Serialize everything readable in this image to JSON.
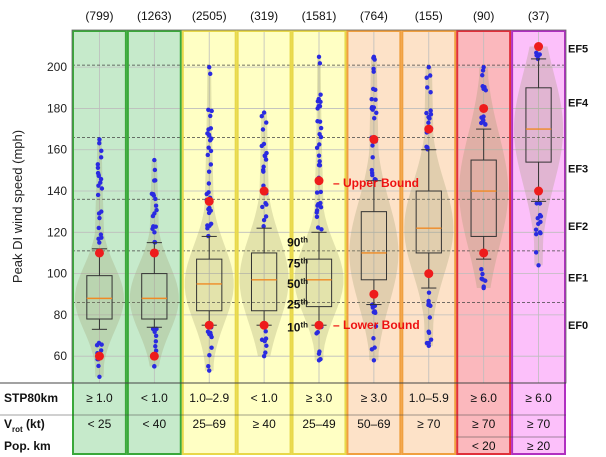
{
  "chart_data": {
    "type": "box",
    "ylabel": "Peak DI wind speed (mph)",
    "ylim": [
      47,
      218
    ],
    "yticks": [
      60,
      80,
      100,
      120,
      140,
      160,
      180,
      200
    ],
    "ef_thresholds": [
      86,
      111,
      136,
      166,
      201
    ],
    "ef_labels": [
      {
        "label": "EF0",
        "y": 75
      },
      {
        "label": "EF1",
        "y": 98
      },
      {
        "label": "EF2",
        "y": 123
      },
      {
        "label": "EF3",
        "y": 151
      },
      {
        "label": "EF4",
        "y": 183
      },
      {
        "label": "EF5",
        "y": 209
      }
    ],
    "row_labels": {
      "stp": "STP80km",
      "vrot_main": "V",
      "vrot_sub": "rot",
      "vrot_unit": " (kt)",
      "pop": "Pop. km"
    },
    "percentile_labels": [
      {
        "num": "90",
        "suffix": "th",
        "y": 115
      },
      {
        "num": "75",
        "suffix": "th",
        "y": 105
      },
      {
        "num": "50",
        "suffix": "th",
        "y": 95
      },
      {
        "num": "25",
        "suffix": "th",
        "y": 85
      },
      {
        "num": "10",
        "suffix": "th",
        "y": 74
      }
    ],
    "bound_labels": {
      "upper": "– Upper Bound",
      "lower": "– Lower Bound",
      "upper_y": 144,
      "lower_y": 75
    },
    "groups": [
      {
        "count": "(799)",
        "stp": "≥ 1.0",
        "vrot": "< 25",
        "pop": "",
        "color": "#c6eacb",
        "border": "#3aa83a",
        "min": 50,
        "p10": 73,
        "q1": 78,
        "median": 88,
        "q3": 99,
        "p90": 112,
        "max": 165,
        "lower_bound": 60,
        "upper_bound": 110
      },
      {
        "count": "(1263)",
        "stp": "< 1.0",
        "vrot": "< 40",
        "pop": "",
        "color": "#c6eacb",
        "border": "#3aa83a",
        "min": 55,
        "p10": 74,
        "q1": 78,
        "median": 88,
        "q3": 100,
        "p90": 115,
        "max": 155,
        "lower_bound": 60,
        "upper_bound": 110
      },
      {
        "count": "(2505)",
        "stp": "1.0–2.9",
        "vrot": "25–69",
        "pop": "",
        "color": "#ffffc4",
        "border": "#e8d84a",
        "min": 53,
        "p10": 75,
        "q1": 82,
        "median": 95,
        "q3": 107,
        "p90": 118,
        "max": 200,
        "lower_bound": 75,
        "upper_bound": 135
      },
      {
        "count": "(319)",
        "stp": "< 1.0",
        "vrot": "≥ 40",
        "pop": "",
        "color": "#ffffc4",
        "border": "#e8d84a",
        "min": 60,
        "p10": 75,
        "q1": 82,
        "median": 97,
        "q3": 110,
        "p90": 122,
        "max": 178,
        "lower_bound": 75,
        "upper_bound": 140
      },
      {
        "count": "(1581)",
        "stp": "≥ 3.0",
        "vrot": "25–49",
        "pop": "",
        "color": "#ffffc4",
        "border": "#e8d84a",
        "min": 58,
        "p10": 75,
        "q1": 84,
        "median": 97,
        "q3": 107,
        "p90": 120,
        "max": 205,
        "lower_bound": 75,
        "upper_bound": 145
      },
      {
        "count": "(764)",
        "stp": "≥ 3.0",
        "vrot": "50–69",
        "pop": "",
        "color": "#fde2c8",
        "border": "#f0a040",
        "min": 58,
        "p10": 85,
        "q1": 97,
        "median": 110,
        "q3": 130,
        "p90": 145,
        "max": 205,
        "lower_bound": 90,
        "upper_bound": 165
      },
      {
        "count": "(155)",
        "stp": "1.0–5.9",
        "vrot": "≥ 70",
        "pop": "",
        "color": "#fde2c8",
        "border": "#f0a040",
        "min": 65,
        "p10": 93,
        "q1": 110,
        "median": 122,
        "q3": 140,
        "p90": 160,
        "max": 200,
        "lower_bound": 100,
        "upper_bound": 170
      },
      {
        "count": "(90)",
        "stp": "≥ 6.0",
        "vrot": "≥ 70",
        "pop": "< 20",
        "color": "#fbb8bd",
        "border": "#e0303a",
        "min": 93,
        "p10": 107,
        "q1": 118,
        "median": 140,
        "q3": 155,
        "p90": 170,
        "max": 200,
        "lower_bound": 110,
        "upper_bound": 180
      },
      {
        "count": "(37)",
        "stp": "≥ 6.0",
        "vrot": "≥ 70",
        "pop": "≥ 20",
        "color": "#fcc0fa",
        "border": "#b030c0",
        "min": 104,
        "p10": 135,
        "q1": 154,
        "median": 170,
        "q3": 190,
        "p90": 204,
        "max": 210,
        "lower_bound": 140,
        "upper_bound": 210
      }
    ]
  }
}
